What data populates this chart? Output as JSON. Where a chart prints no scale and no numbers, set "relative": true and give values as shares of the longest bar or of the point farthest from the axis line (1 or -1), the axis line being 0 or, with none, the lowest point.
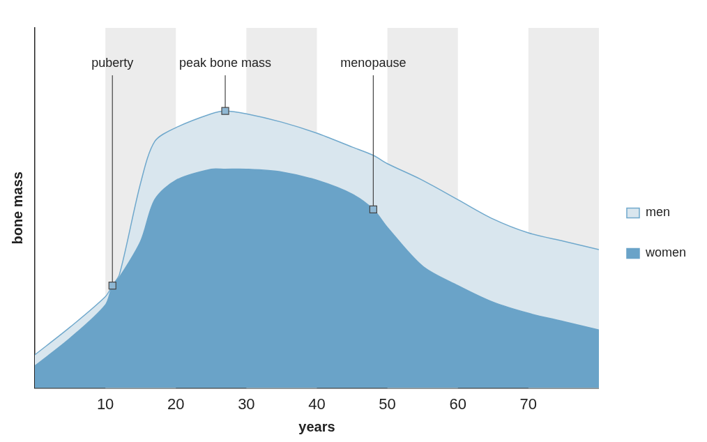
{
  "chart_data": {
    "type": "area",
    "relative": true,
    "xlabel": "years",
    "ylabel": "bone mass",
    "xlim": [
      0,
      80
    ],
    "xticks": [
      10,
      20,
      30,
      40,
      50,
      60,
      70
    ],
    "x": [
      0,
      5,
      10,
      11,
      12,
      15,
      17,
      20,
      25,
      27,
      30,
      35,
      40,
      45,
      48,
      50,
      55,
      60,
      65,
      70,
      75,
      80
    ],
    "series": [
      {
        "name": "men",
        "color": "#d9e6ee",
        "values": [
          0.12,
          0.22,
          0.33,
          0.37,
          0.41,
          0.74,
          0.89,
          0.94,
          0.99,
          1.0,
          0.99,
          0.96,
          0.92,
          0.87,
          0.84,
          0.81,
          0.75,
          0.68,
          0.61,
          0.56,
          0.53,
          0.5
        ]
      },
      {
        "name": "women",
        "color": "#6aa3c8",
        "values": [
          0.08,
          0.18,
          0.3,
          0.37,
          0.4,
          0.53,
          0.68,
          0.75,
          0.79,
          0.79,
          0.79,
          0.78,
          0.75,
          0.7,
          0.645,
          0.58,
          0.44,
          0.37,
          0.31,
          0.27,
          0.24,
          0.21
        ]
      }
    ],
    "bands": [
      {
        "axis": "x",
        "from": 10,
        "to": 20,
        "color": "#ececec"
      },
      {
        "axis": "x",
        "from": 30,
        "to": 40,
        "color": "#ececec"
      },
      {
        "axis": "x",
        "from": 50,
        "to": 60,
        "color": "#ececec"
      },
      {
        "axis": "x",
        "from": 70,
        "to": 80,
        "color": "#ececec"
      }
    ],
    "annotations": [
      {
        "text": "puberty",
        "x": 11,
        "y": 0.37
      },
      {
        "text": "peak bone mass",
        "x": 27,
        "y": 1.0
      },
      {
        "text": "menopause",
        "x": 48,
        "y": 0.645
      }
    ],
    "legend": "right",
    "marker": "none",
    "grid": false
  }
}
